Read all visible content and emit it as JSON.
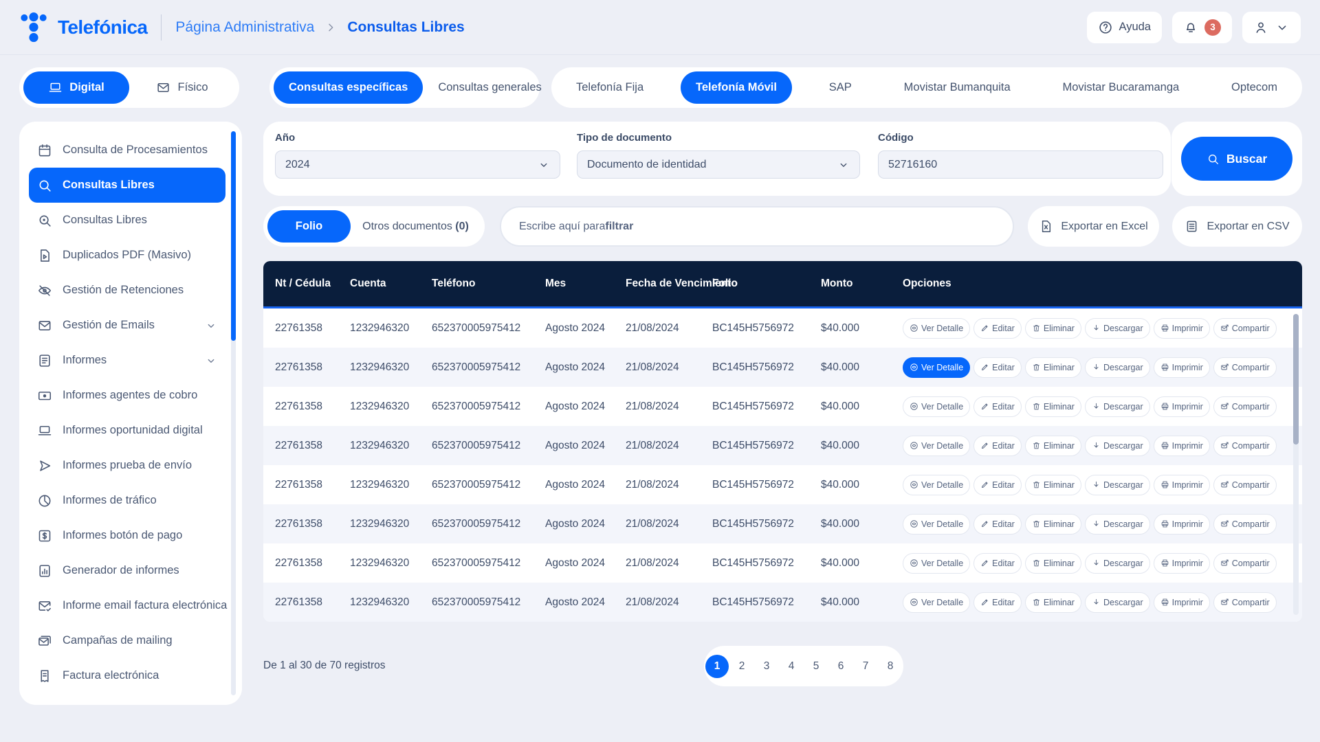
{
  "header": {
    "brand": "Telefónica",
    "breadcrumb_section": "Página Administrativa",
    "breadcrumb_page": "Consultas Libres",
    "help_label": "Ayuda",
    "notification_count": "3"
  },
  "mode_toggle": {
    "digital": "Digital",
    "fisico": "Físico"
  },
  "query_tabs": {
    "especificas": "Consultas específicas",
    "generales": "Consultas generales"
  },
  "service_tabs": [
    {
      "label": "Telefonía Fija",
      "active": false
    },
    {
      "label": "Telefonía Móvil",
      "active": true
    },
    {
      "label": "SAP",
      "active": false
    },
    {
      "label": "Movistar Bumanquita",
      "active": false
    },
    {
      "label": "Movistar Bucaramanga",
      "active": false
    },
    {
      "label": "Optecom",
      "active": false
    }
  ],
  "sidebar": {
    "items": [
      {
        "icon": "calendar-icon",
        "label": "Consulta de Procesamientos",
        "active": false
      },
      {
        "icon": "search-icon",
        "label": "Consultas Libres",
        "active": true
      },
      {
        "icon": "search-zoom-icon",
        "label": "Consultas Libres",
        "active": false
      },
      {
        "icon": "pdf-file-icon",
        "label": "Duplicados PDF (Masivo)",
        "active": false
      },
      {
        "icon": "eye-off-icon",
        "label": "Gestión de Retenciones",
        "active": false
      },
      {
        "icon": "envelope-icon",
        "label": "Gestión de Emails",
        "active": false,
        "chevron": true
      },
      {
        "icon": "document-icon",
        "label": "Informes",
        "active": false,
        "chevron": true
      },
      {
        "icon": "cash-icon",
        "label": "Informes agentes de cobro",
        "active": false
      },
      {
        "icon": "laptop-icon",
        "label": "Informes oportunidad digital",
        "active": false
      },
      {
        "icon": "send-icon",
        "label": "Informes prueba de envío",
        "active": false
      },
      {
        "icon": "pie-chart-icon",
        "label": "Informes de tráfico",
        "active": false
      },
      {
        "icon": "dollar-icon",
        "label": "Informes botón de pago",
        "active": false
      },
      {
        "icon": "bar-chart-icon",
        "label": "Generador de informes",
        "active": false
      },
      {
        "icon": "mail-check-icon",
        "label": "Informe email factura electrónica",
        "active": false
      },
      {
        "icon": "mail-multi-icon",
        "label": "Campañas de mailing",
        "active": false
      },
      {
        "icon": "receipt-icon",
        "label": "Factura electrónica",
        "active": false
      }
    ]
  },
  "filters": {
    "year": {
      "label": "Año",
      "value": "2024"
    },
    "doc_type": {
      "label": "Tipo de documento",
      "value": "Documento de identidad"
    },
    "code": {
      "label": "Código",
      "value": "52716160"
    },
    "search_label": "Buscar"
  },
  "toolbar": {
    "folio_label": "Folio",
    "other_docs_label": "Otros documentos ",
    "other_docs_count": "(0)",
    "filter_placeholder_prefix": "Escribe aquí para ",
    "filter_placeholder_bold": "filtrar",
    "export_excel": "Exportar en Excel",
    "export_csv": "Exportar en CSV"
  },
  "table": {
    "columns": [
      "Nt / Cédula",
      "Cuenta",
      "Teléfono",
      "Mes",
      "Fecha de Vencimiento",
      "Folio",
      "Monto",
      "Opciones"
    ],
    "actions": [
      {
        "name": "ver-detalle-button",
        "icon": "eye-icon",
        "label": "Ver Detalle"
      },
      {
        "name": "editar-button",
        "icon": "pencil-icon",
        "label": "Editar"
      },
      {
        "name": "eliminar-button",
        "icon": "trash-icon",
        "label": "Eliminar"
      },
      {
        "name": "descargar-button",
        "icon": "download-icon",
        "label": "Descargar"
      },
      {
        "name": "imprimir-button",
        "icon": "printer-icon",
        "label": "Imprimir"
      },
      {
        "name": "compartir-button",
        "icon": "share-mail-icon",
        "label": "Compartir"
      }
    ],
    "rows": [
      {
        "nt": "22761358",
        "cuenta": "1232946320",
        "telefono": "652370005975412",
        "mes": "Agosto 2024",
        "fecha": "21/08/2024",
        "folio": "BC145H5756972",
        "monto": "$40.000",
        "active_action": null
      },
      {
        "nt": "22761358",
        "cuenta": "1232946320",
        "telefono": "652370005975412",
        "mes": "Agosto 2024",
        "fecha": "21/08/2024",
        "folio": "BC145H5756972",
        "monto": "$40.000",
        "active_action": "Ver Detalle"
      },
      {
        "nt": "22761358",
        "cuenta": "1232946320",
        "telefono": "652370005975412",
        "mes": "Agosto 2024",
        "fecha": "21/08/2024",
        "folio": "BC145H5756972",
        "monto": "$40.000",
        "active_action": null
      },
      {
        "nt": "22761358",
        "cuenta": "1232946320",
        "telefono": "652370005975412",
        "mes": "Agosto 2024",
        "fecha": "21/08/2024",
        "folio": "BC145H5756972",
        "monto": "$40.000",
        "active_action": null
      },
      {
        "nt": "22761358",
        "cuenta": "1232946320",
        "telefono": "652370005975412",
        "mes": "Agosto 2024",
        "fecha": "21/08/2024",
        "folio": "BC145H5756972",
        "monto": "$40.000",
        "active_action": null
      },
      {
        "nt": "22761358",
        "cuenta": "1232946320",
        "telefono": "652370005975412",
        "mes": "Agosto 2024",
        "fecha": "21/08/2024",
        "folio": "BC145H5756972",
        "monto": "$40.000",
        "active_action": null
      },
      {
        "nt": "22761358",
        "cuenta": "1232946320",
        "telefono": "652370005975412",
        "mes": "Agosto 2024",
        "fecha": "21/08/2024",
        "folio": "BC145H5756972",
        "monto": "$40.000",
        "active_action": null
      },
      {
        "nt": "22761358",
        "cuenta": "1232946320",
        "telefono": "652370005975412",
        "mes": "Agosto 2024",
        "fecha": "21/08/2024",
        "folio": "BC145H5756972",
        "monto": "$40.000",
        "active_action": null
      }
    ]
  },
  "pagination": {
    "summary": "De 1 al 30 de 70 registros",
    "pages": [
      {
        "label": "1",
        "active": true
      },
      {
        "label": "2",
        "active": false
      },
      {
        "label": "3",
        "active": false
      },
      {
        "label": "4",
        "active": false
      },
      {
        "label": "5",
        "active": false
      },
      {
        "label": "6",
        "active": false
      },
      {
        "label": "7",
        "active": false
      },
      {
        "label": "8",
        "active": false
      }
    ]
  },
  "colors": {
    "primary_blue": "#0667FB",
    "table_header_navy": "#0A1E3C",
    "badge_red": "#DC6B60",
    "page_background": "#EDEFF6"
  }
}
